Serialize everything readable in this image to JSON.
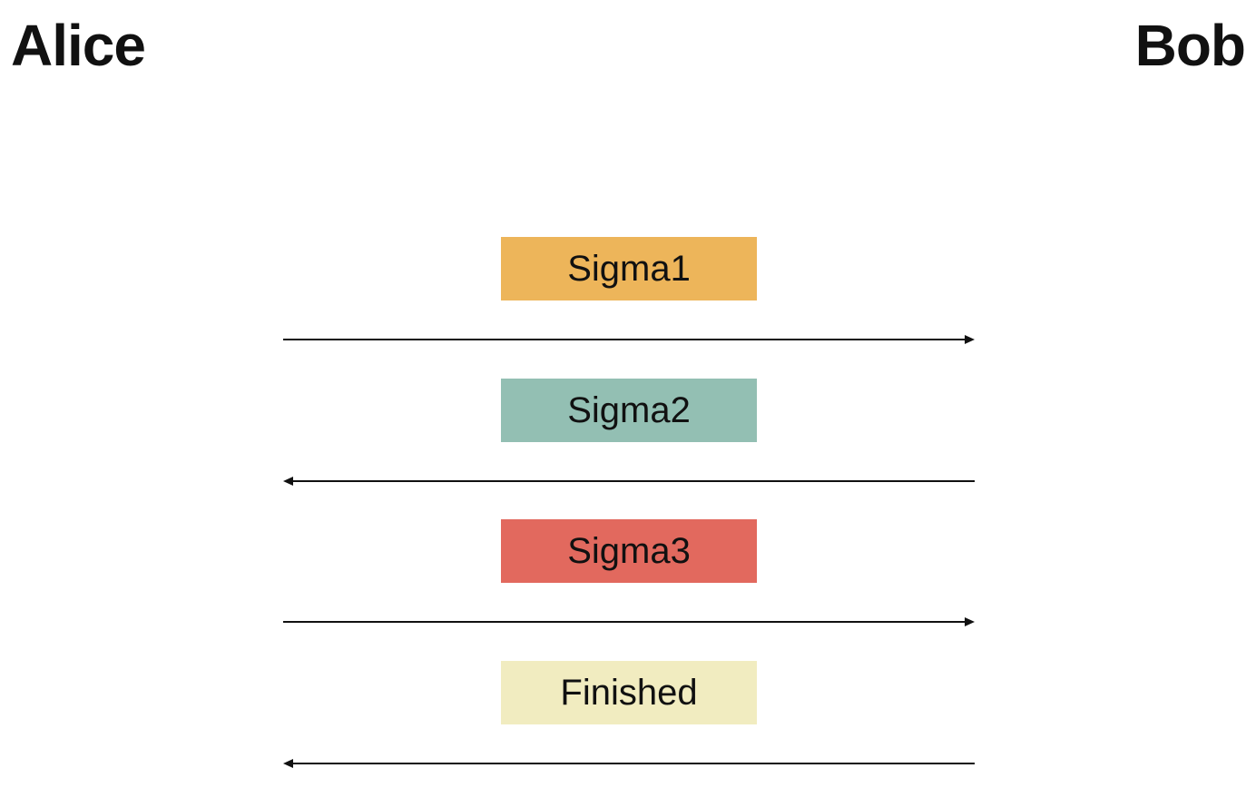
{
  "parties": {
    "left": "Alice",
    "right": "Bob"
  },
  "messages": [
    {
      "label": "Sigma1",
      "color": "#EDB55A",
      "direction": "right"
    },
    {
      "label": "Sigma2",
      "color": "#93BFB3",
      "direction": "left"
    },
    {
      "label": "Sigma3",
      "color": "#E2695E",
      "direction": "right"
    },
    {
      "label": "Finished",
      "color": "#F1ECC0",
      "direction": "left"
    }
  ]
}
